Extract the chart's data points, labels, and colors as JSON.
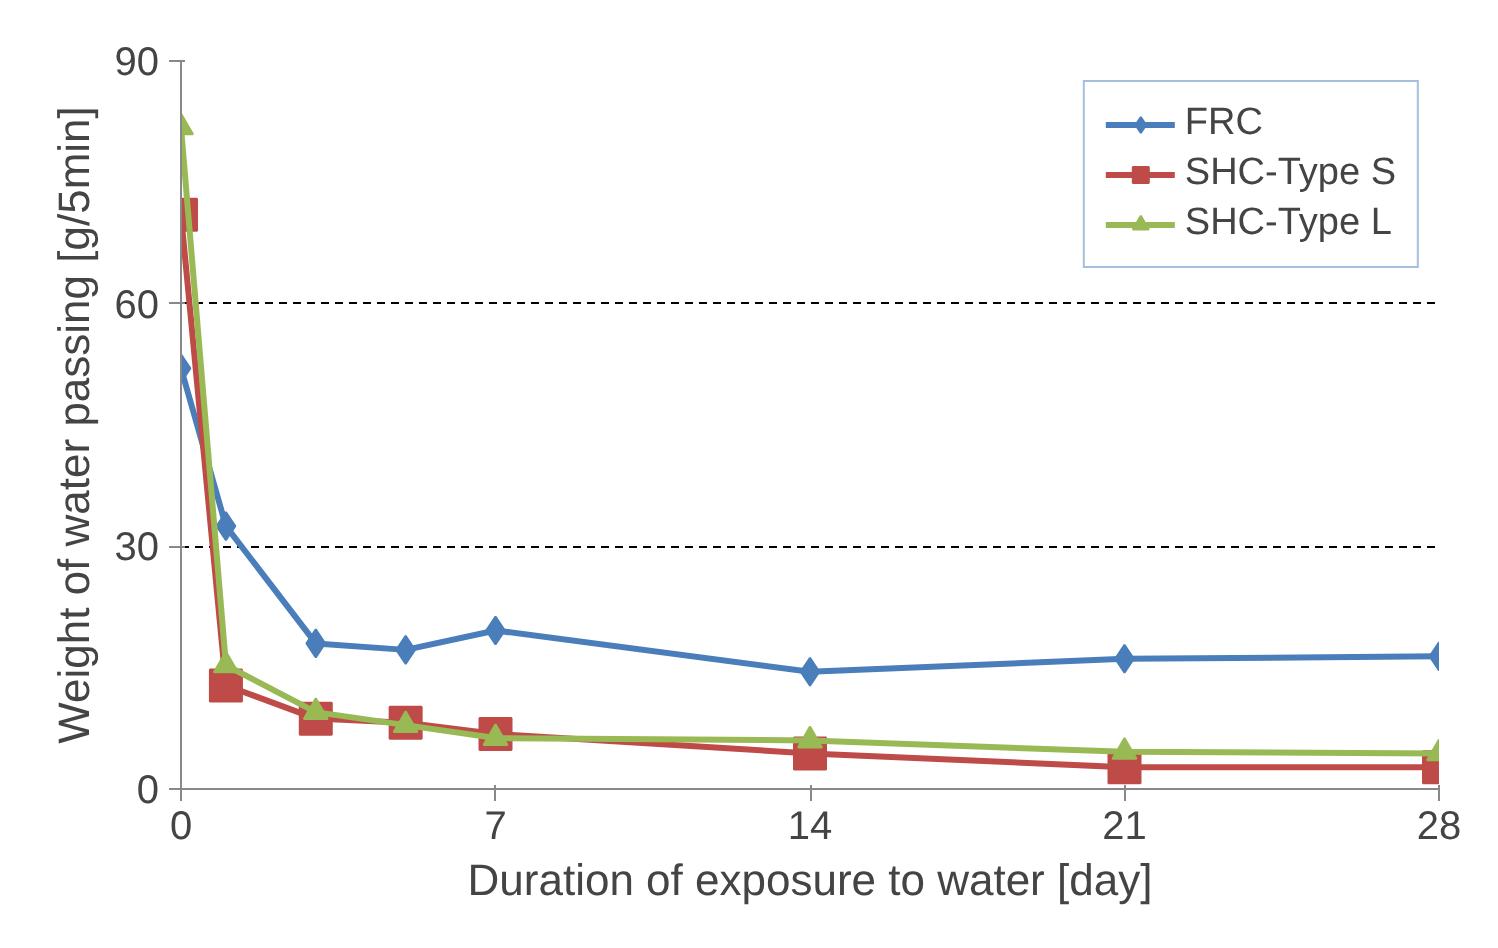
{
  "chart_data": {
    "type": "line",
    "xlabel": "Duration of exposure to water [day]",
    "ylabel": "Weight of water passing [g/5min]",
    "x": [
      0,
      1,
      3,
      5,
      7,
      14,
      21,
      28
    ],
    "series": [
      {
        "name": "FRC",
        "color": "#4a7ebb",
        "marker": "diamond",
        "values": [
          52,
          32.5,
          18,
          17.2,
          19.6,
          14.5,
          16.1,
          16.4
        ]
      },
      {
        "name": "SHC-Type S",
        "color": "#be4b48",
        "marker": "square",
        "values": [
          71,
          12.8,
          8.7,
          8.2,
          6.8,
          4.4,
          2.7,
          2.7
        ]
      },
      {
        "name": "SHC-Type L",
        "color": "#98b954",
        "marker": "triangle",
        "values": [
          81.8,
          15.3,
          9.5,
          7.9,
          6.3,
          6,
          4.6,
          4.4
        ]
      }
    ],
    "xlim": [
      0,
      28
    ],
    "ylim": [
      0,
      90
    ],
    "xticks": [
      0,
      7,
      14,
      21,
      28
    ],
    "yticks": [
      0,
      30,
      60,
      90
    ],
    "grid": "y",
    "legend": "top right",
    "line_style": "solid"
  }
}
